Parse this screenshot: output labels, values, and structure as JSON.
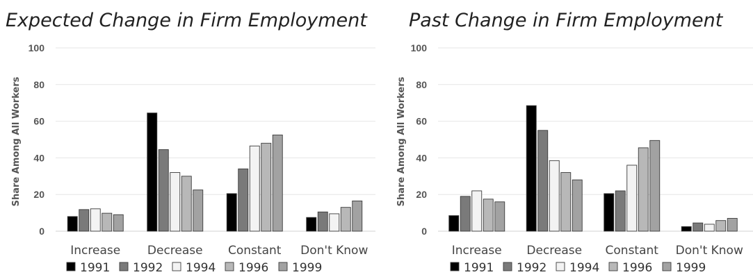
{
  "chart_data": [
    {
      "type": "bar",
      "title": "Expected Change in Firm Employment",
      "ylabel": "Share Among All Workers",
      "xlabel": "",
      "ylim": [
        0,
        100
      ],
      "yticks": [
        0,
        20,
        40,
        60,
        80,
        100
      ],
      "grid": true,
      "legend": "bottom",
      "categories": [
        "Increase",
        "Decrease",
        "Constant",
        "Don't Know"
      ],
      "series": [
        {
          "name": "1991",
          "color": "#000000",
          "values": [
            8,
            64.5,
            20.5,
            7.5
          ]
        },
        {
          "name": "1992",
          "color": "#7a7a7a",
          "values": [
            11.8,
            44.5,
            34,
            10.5
          ]
        },
        {
          "name": "1994",
          "color": "#f3f3f3",
          "values": [
            12.2,
            32,
            46.5,
            9.5
          ]
        },
        {
          "name": "1996",
          "color": "#b8b8b8",
          "values": [
            9.8,
            30,
            48,
            13
          ]
        },
        {
          "name": "1999",
          "color": "#a2a2a2",
          "values": [
            9,
            22.5,
            52.5,
            16.5
          ]
        }
      ]
    },
    {
      "type": "bar",
      "title": "Past Change in Firm Employment",
      "ylabel": "Share Among All Workers",
      "xlabel": "",
      "ylim": [
        0,
        100
      ],
      "yticks": [
        0,
        20,
        40,
        60,
        80,
        100
      ],
      "grid": true,
      "legend": "bottom",
      "categories": [
        "Increase",
        "Decrease",
        "Constant",
        "Don't Know"
      ],
      "series": [
        {
          "name": "1991",
          "color": "#000000",
          "values": [
            8.5,
            68.5,
            20.5,
            2.5
          ]
        },
        {
          "name": "1992",
          "color": "#7a7a7a",
          "values": [
            19,
            55,
            22,
            4.5
          ]
        },
        {
          "name": "1994",
          "color": "#f3f3f3",
          "values": [
            22,
            38.5,
            36,
            3.8
          ]
        },
        {
          "name": "1996",
          "color": "#b8b8b8",
          "values": [
            17.5,
            32,
            45.5,
            5.8
          ]
        },
        {
          "name": "1999",
          "color": "#a2a2a2",
          "values": [
            16,
            28,
            49.5,
            7
          ]
        }
      ]
    }
  ]
}
